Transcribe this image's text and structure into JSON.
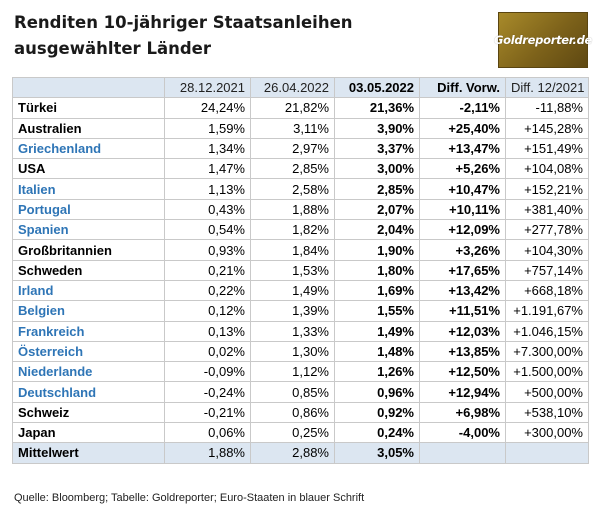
{
  "title_line1": "Renditen 10-jähriger Staatsanleihen",
  "title_line2": "ausgewählter Länder",
  "logo_text": "Goldreporter.de",
  "colors": {
    "header_bg": "#dce6f1",
    "euro_blue": "#2e75b6",
    "logo_gold": "#8b6d1f"
  },
  "headers": [
    "",
    "28.12.2021",
    "26.04.2022",
    "03.05.2022",
    "Diff. Vorw.",
    "Diff. 12/2021"
  ],
  "rows": [
    {
      "country": "Türkei",
      "euro": false,
      "v1": "24,24%",
      "v2": "21,82%",
      "v3": "21,36%",
      "d1": "-2,11%",
      "d2": "-11,88%"
    },
    {
      "country": "Australien",
      "euro": false,
      "v1": "1,59%",
      "v2": "3,11%",
      "v3": "3,90%",
      "d1": "+25,40%",
      "d2": "+145,28%"
    },
    {
      "country": "Griechenland",
      "euro": true,
      "v1": "1,34%",
      "v2": "2,97%",
      "v3": "3,37%",
      "d1": "+13,47%",
      "d2": "+151,49%"
    },
    {
      "country": "USA",
      "euro": false,
      "v1": "1,47%",
      "v2": "2,85%",
      "v3": "3,00%",
      "d1": "+5,26%",
      "d2": "+104,08%"
    },
    {
      "country": "Italien",
      "euro": true,
      "v1": "1,13%",
      "v2": "2,58%",
      "v3": "2,85%",
      "d1": "+10,47%",
      "d2": "+152,21%"
    },
    {
      "country": "Portugal",
      "euro": true,
      "v1": "0,43%",
      "v2": "1,88%",
      "v3": "2,07%",
      "d1": "+10,11%",
      "d2": "+381,40%"
    },
    {
      "country": "Spanien",
      "euro": true,
      "v1": "0,54%",
      "v2": "1,82%",
      "v3": "2,04%",
      "d1": "+12,09%",
      "d2": "+277,78%"
    },
    {
      "country": "Großbritannien",
      "euro": false,
      "v1": "0,93%",
      "v2": "1,84%",
      "v3": "1,90%",
      "d1": "+3,26%",
      "d2": "+104,30%"
    },
    {
      "country": "Schweden",
      "euro": false,
      "v1": "0,21%",
      "v2": "1,53%",
      "v3": "1,80%",
      "d1": "+17,65%",
      "d2": "+757,14%"
    },
    {
      "country": "Irland",
      "euro": true,
      "v1": "0,22%",
      "v2": "1,49%",
      "v3": "1,69%",
      "d1": "+13,42%",
      "d2": "+668,18%"
    },
    {
      "country": "Belgien",
      "euro": true,
      "v1": "0,12%",
      "v2": "1,39%",
      "v3": "1,55%",
      "d1": "+11,51%",
      "d2": "+1.191,67%"
    },
    {
      "country": "Frankreich",
      "euro": true,
      "v1": "0,13%",
      "v2": "1,33%",
      "v3": "1,49%",
      "d1": "+12,03%",
      "d2": "+1.046,15%"
    },
    {
      "country": "Österreich",
      "euro": true,
      "v1": "0,02%",
      "v2": "1,30%",
      "v3": "1,48%",
      "d1": "+13,85%",
      "d2": "+7.300,00%"
    },
    {
      "country": "Niederlande",
      "euro": true,
      "v1": "-0,09%",
      "v2": "1,12%",
      "v3": "1,26%",
      "d1": "+12,50%",
      "d2": "+1.500,00%"
    },
    {
      "country": "Deutschland",
      "euro": true,
      "v1": "-0,24%",
      "v2": "0,85%",
      "v3": "0,96%",
      "d1": "+12,94%",
      "d2": "+500,00%"
    },
    {
      "country": "Schweiz",
      "euro": false,
      "v1": "-0,21%",
      "v2": "0,86%",
      "v3": "0,92%",
      "d1": "+6,98%",
      "d2": "+538,10%"
    },
    {
      "country": "Japan",
      "euro": false,
      "v1": "0,06%",
      "v2": "0,25%",
      "v3": "0,24%",
      "d1": "-4,00%",
      "d2": "+300,00%"
    }
  ],
  "mean_row": {
    "country": "Mittelwert",
    "v1": "1,88%",
    "v2": "2,88%",
    "v3": "3,05%",
    "d1": "",
    "d2": ""
  },
  "source": "Quelle: Bloomberg; Tabelle: Goldreporter; Euro-Staaten in blauer Schrift"
}
